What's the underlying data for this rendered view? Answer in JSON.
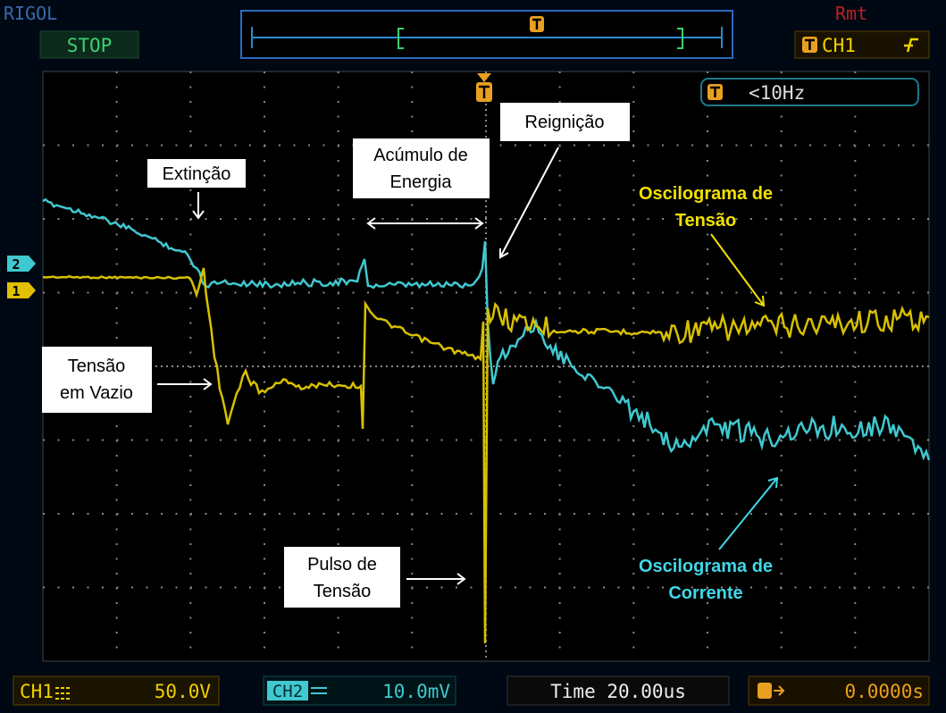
{
  "header": {
    "brand": "RIGOL",
    "status": "STOP",
    "remote": "Rmt",
    "trigger_source": "CH1",
    "trigger_frequency": "<10Hz"
  },
  "channel_markers": [
    "2",
    "1"
  ],
  "annotations": [
    {
      "lines": [
        "Extinção"
      ]
    },
    {
      "lines": [
        "Acúmulo de",
        "Energia"
      ]
    },
    {
      "lines": [
        "Reignição"
      ]
    },
    {
      "lines": [
        "Tensão",
        "em Vazio"
      ]
    },
    {
      "lines": [
        "Pulso de",
        "Tensão"
      ]
    },
    {
      "lines": [
        "Oscilograma de",
        "Tensão"
      ]
    },
    {
      "lines": [
        "Oscilograma de",
        "Corrente"
      ]
    }
  ],
  "footer": {
    "ch1_label": "CH1",
    "ch1_scale": "50.0V",
    "ch2_label": "CH2",
    "ch2_scale": "10.0mV",
    "time": "Time 20.00us",
    "trigger_offset": "0.0000s"
  }
}
